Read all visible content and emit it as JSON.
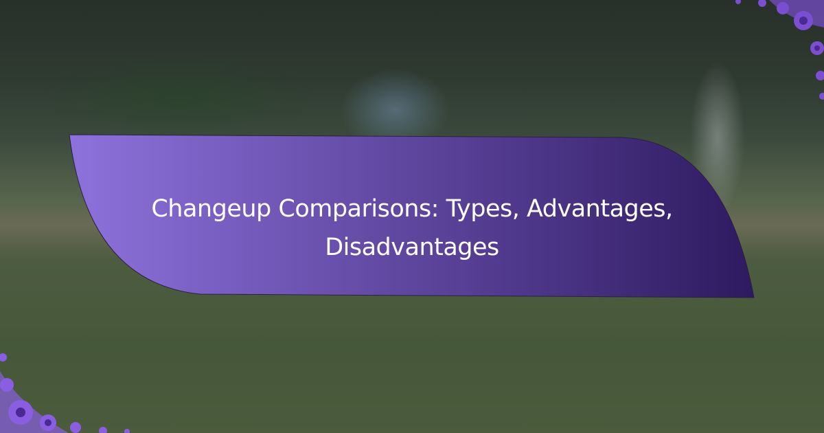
{
  "banner": {
    "title": "Changeup Comparisons: Types, Advantages, Disadvantages",
    "gradient_start": "#8e72dc",
    "gradient_end": "#2e1a60",
    "text_color": "#ffffff"
  },
  "decorations": {
    "top_right": "purple-floral-ornament",
    "bottom_left": "purple-floral-ornament",
    "ornament_color": "#7b4fd0"
  },
  "background": "blurred-baseball-field-photo"
}
